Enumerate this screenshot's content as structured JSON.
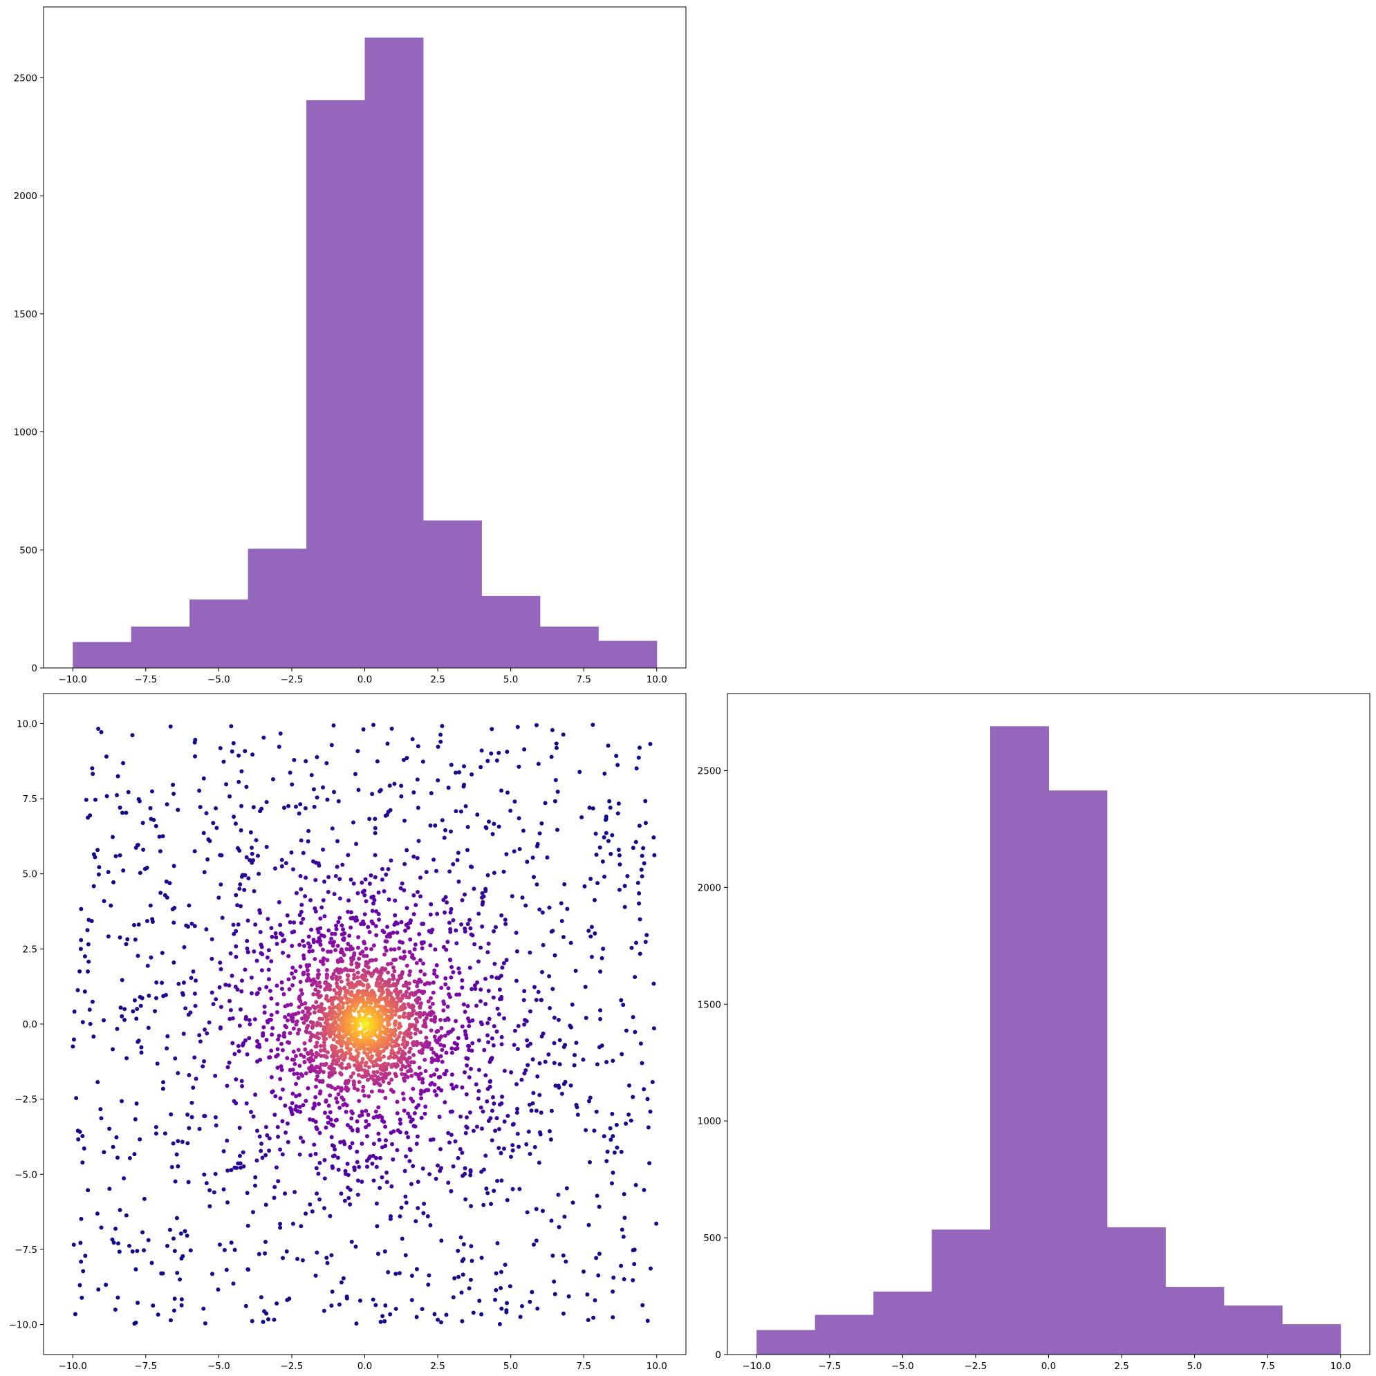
{
  "figure": {
    "background": "#ffffff",
    "panel_gap": "top-right panel empty"
  },
  "chart_data": [
    {
      "id": "top-left",
      "type": "bar",
      "subtype": "histogram",
      "color": "#9467bd",
      "bin_edges": [
        -10,
        -8,
        -6,
        -4,
        -2,
        0,
        2,
        4,
        6,
        8,
        10
      ],
      "values": [
        110,
        175,
        290,
        505,
        2405,
        2670,
        625,
        305,
        175,
        115
      ],
      "xlim": [
        -11,
        11
      ],
      "ylim": [
        0,
        2800
      ],
      "xticks": [
        -10,
        -7.5,
        -5,
        -2.5,
        0,
        2.5,
        5,
        7.5,
        10
      ],
      "xtick_labels": [
        "−10.0",
        "−7.5",
        "−5.0",
        "−2.5",
        "0.0",
        "2.5",
        "5.0",
        "7.5",
        "10.0"
      ],
      "yticks": [
        0,
        500,
        1000,
        1500,
        2000,
        2500
      ],
      "ytick_labels": [
        "0",
        "500",
        "1000",
        "1500",
        "2000",
        "2500"
      ],
      "title": "",
      "xlabel": "",
      "ylabel": "",
      "grid": false
    },
    {
      "id": "bottom-left",
      "type": "scatter",
      "colormap": "plasma (density)",
      "colormap_stops": [
        "#0d0887",
        "#46039f",
        "#7201a8",
        "#9c179e",
        "#bd3786",
        "#d8576b",
        "#ed7953",
        "#fb9f3a",
        "#fdca26",
        "#f0f921"
      ],
      "n_points": 3200,
      "distribution": "dense cluster centered at (0, 0), sparse uniform background over [-10, 10] x [-10, 10]",
      "xlim": [
        -11,
        11
      ],
      "ylim": [
        -11,
        11
      ],
      "xticks": [
        -10,
        -7.5,
        -5,
        -2.5,
        0,
        2.5,
        5,
        7.5,
        10
      ],
      "xtick_labels": [
        "−10.0",
        "−7.5",
        "−5.0",
        "−2.5",
        "0.0",
        "2.5",
        "5.0",
        "7.5",
        "10.0"
      ],
      "yticks": [
        -10,
        -7.5,
        -5,
        -2.5,
        0,
        2.5,
        5,
        7.5,
        10
      ],
      "ytick_labels": [
        "−10.0",
        "−7.5",
        "−5.0",
        "−2.5",
        "0.0",
        "2.5",
        "5.0",
        "7.5",
        "10.0"
      ],
      "title": "",
      "xlabel": "",
      "ylabel": "",
      "grid": false
    },
    {
      "id": "bottom-right",
      "type": "bar",
      "subtype": "histogram",
      "color": "#9467bd",
      "bin_edges": [
        -10,
        -8,
        -6,
        -4,
        -2,
        0,
        2,
        4,
        6,
        8,
        10
      ],
      "values": [
        105,
        170,
        270,
        535,
        2690,
        2415,
        545,
        290,
        210,
        130
      ],
      "xlim": [
        -11,
        11
      ],
      "ylim": [
        0,
        2830
      ],
      "xticks": [
        -10,
        -7.5,
        -5,
        -2.5,
        0,
        2.5,
        5,
        7.5,
        10
      ],
      "xtick_labels": [
        "−10.0",
        "−7.5",
        "−5.0",
        "−2.5",
        "0.0",
        "2.5",
        "5.0",
        "7.5",
        "10.0"
      ],
      "yticks": [
        0,
        500,
        1000,
        1500,
        2000,
        2500
      ],
      "ytick_labels": [
        "0",
        "500",
        "1000",
        "1500",
        "2000",
        "2500"
      ],
      "title": "",
      "xlabel": "",
      "ylabel": "",
      "grid": false
    }
  ]
}
